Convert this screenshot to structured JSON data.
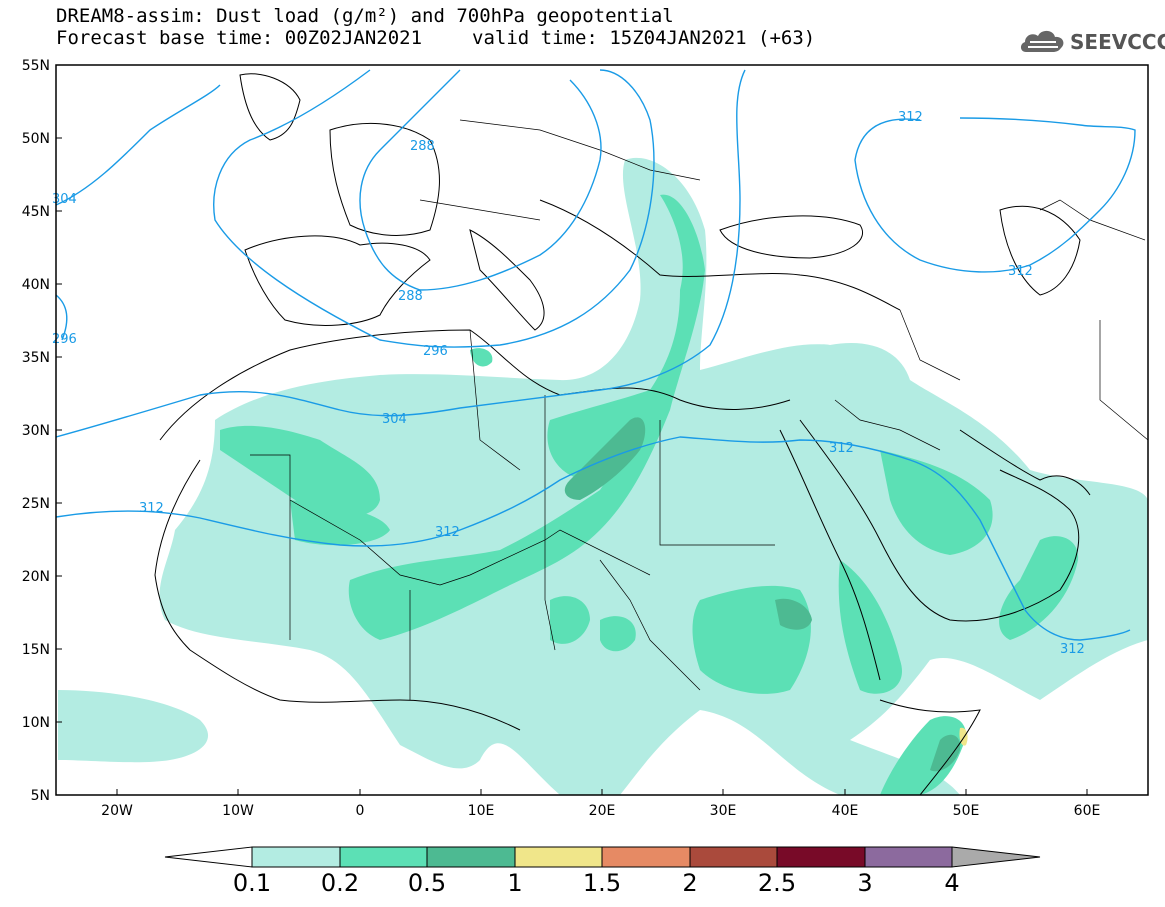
{
  "header": {
    "title_line1": "DREAM8-assim: Dust load (g/m²) and 700hPa geopotential",
    "forecast_base": "Forecast base time: 00Z02JAN2021",
    "valid_time": "valid time: 15Z04JAN2021 (+63)"
  },
  "logo": {
    "text": "SEEVCCC",
    "icon": "cloud-icon"
  },
  "axes": {
    "lat_labels": [
      "55N",
      "50N",
      "45N",
      "40N",
      "35N",
      "30N",
      "25N",
      "20N",
      "15N",
      "10N",
      "5N"
    ],
    "lon_labels": [
      "20W",
      "10W",
      "0",
      "10E",
      "20E",
      "30E",
      "40E",
      "50E",
      "60E"
    ]
  },
  "contours": {
    "color": "#1a9be6",
    "labels": [
      "304",
      "288",
      "288",
      "296",
      "296",
      "304",
      "312",
      "312",
      "312",
      "312",
      "312",
      "312"
    ]
  },
  "colorbar": {
    "levels": [
      "0.1",
      "0.2",
      "0.5",
      "1",
      "1.5",
      "2",
      "2.5",
      "3",
      "4"
    ],
    "colors": [
      "#b3ece2",
      "#5ce0b5",
      "#4dba92",
      "#f0e68a",
      "#e68a64",
      "#aa4a3c",
      "#780a28",
      "#8c6a9e",
      "#aaaaaa"
    ]
  },
  "dust_colors": {
    "light": "#b3ece2",
    "medium": "#5ce0b5",
    "dark": "#4dba92",
    "yellow": "#f0e68a"
  }
}
